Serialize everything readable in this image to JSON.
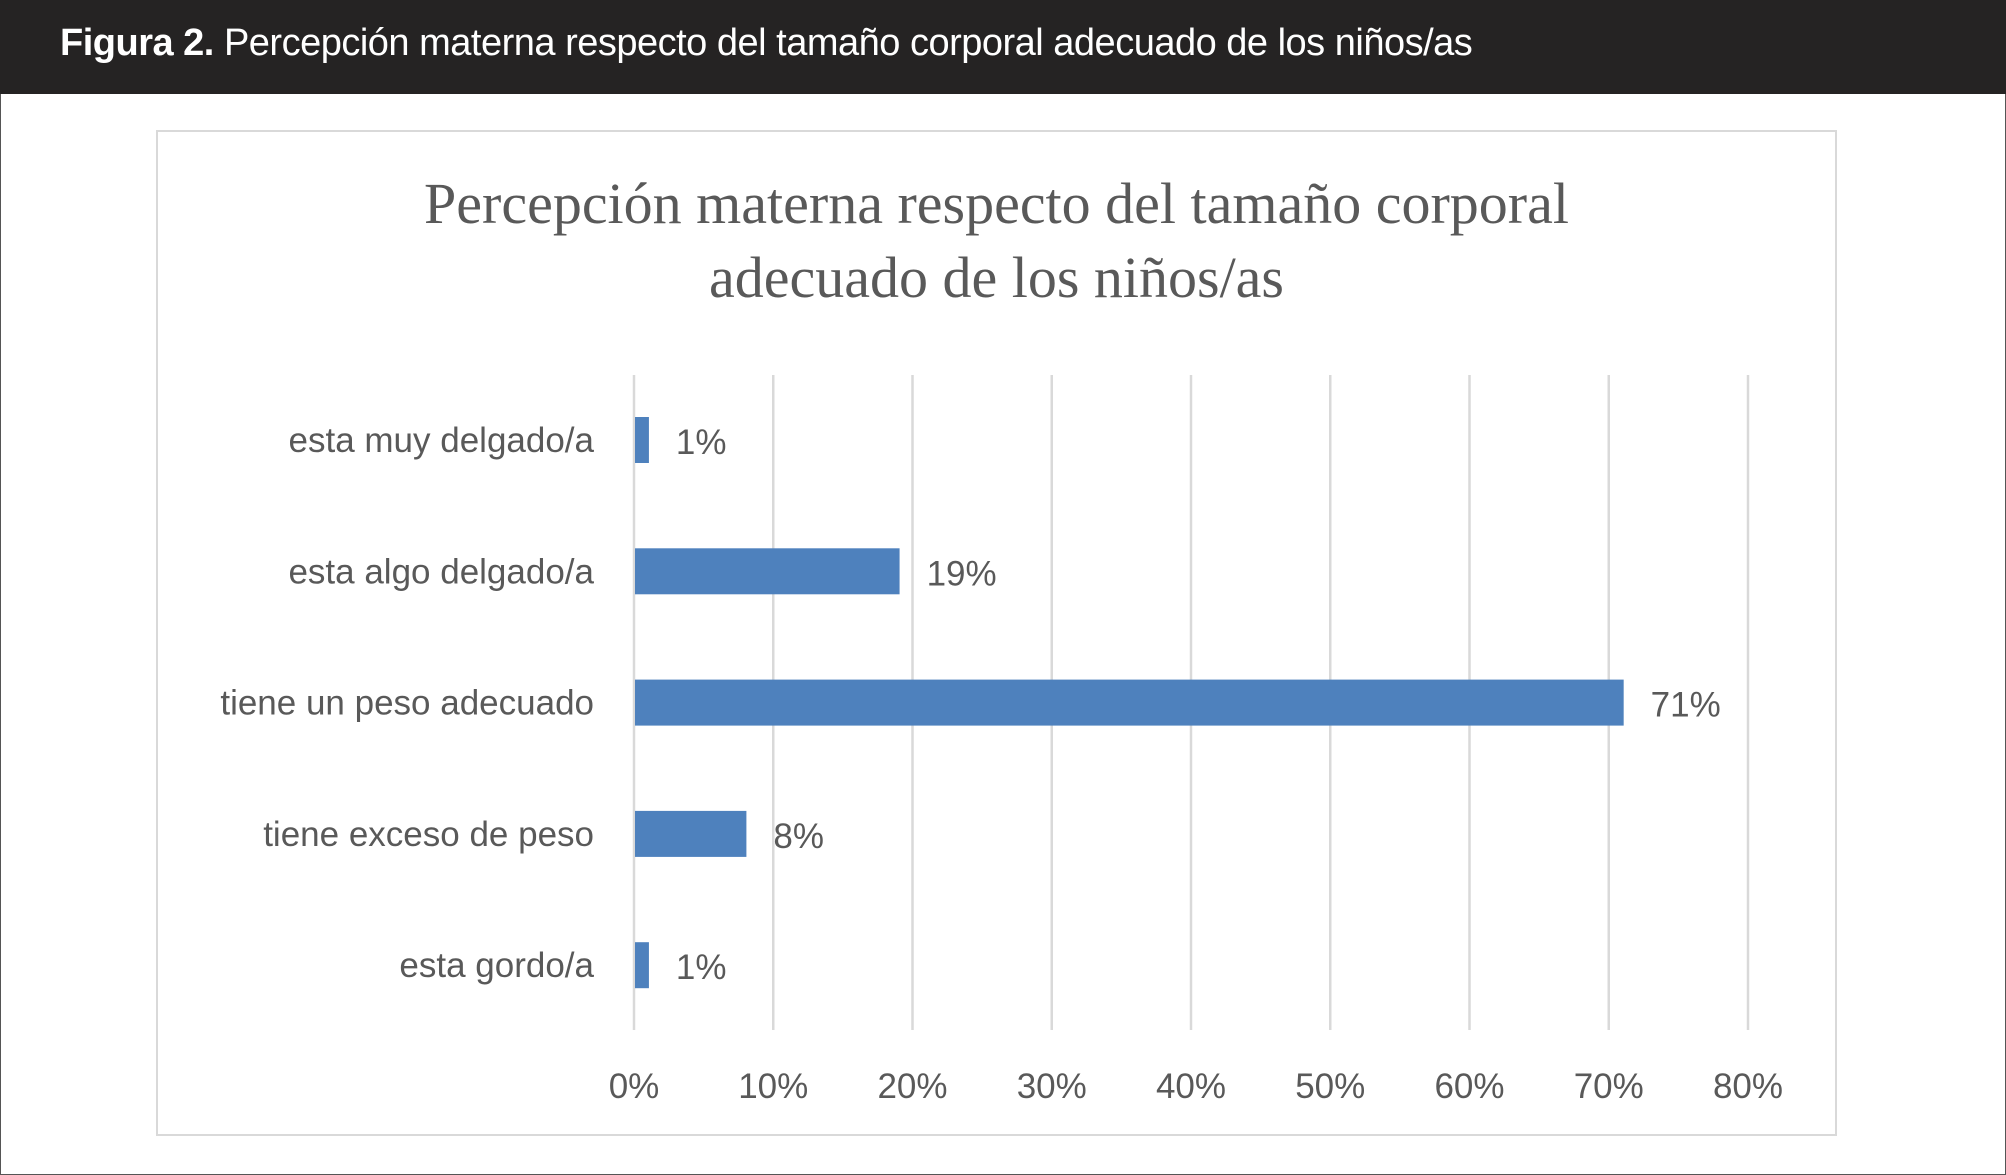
{
  "header": {
    "figure_label": "Figura 2.",
    "caption": "Percepción materna respecto del tamaño corporal adecuado de los niños/as"
  },
  "chart_data": {
    "type": "bar",
    "orientation": "horizontal",
    "title_lines": [
      "Percepción materna respecto del tamaño corporal",
      "adecuado de los niños/as"
    ],
    "categories": [
      "esta muy delgado/a",
      "esta algo delgado/a",
      "tiene un peso adecuado",
      "tiene exceso de peso",
      "esta gordo/a"
    ],
    "values": [
      1,
      19,
      71,
      8,
      1
    ],
    "data_labels": [
      "1%",
      "19%",
      "71%",
      "8%",
      "1%"
    ],
    "xlim": [
      0,
      80
    ],
    "x_ticks": [
      "0%",
      "10%",
      "20%",
      "30%",
      "40%",
      "50%",
      "60%",
      "70%",
      "80%"
    ],
    "xlabel": "",
    "ylabel": "",
    "grid": true,
    "bar_color": "#4e81bd",
    "grid_color": "#d9d9d9"
  }
}
